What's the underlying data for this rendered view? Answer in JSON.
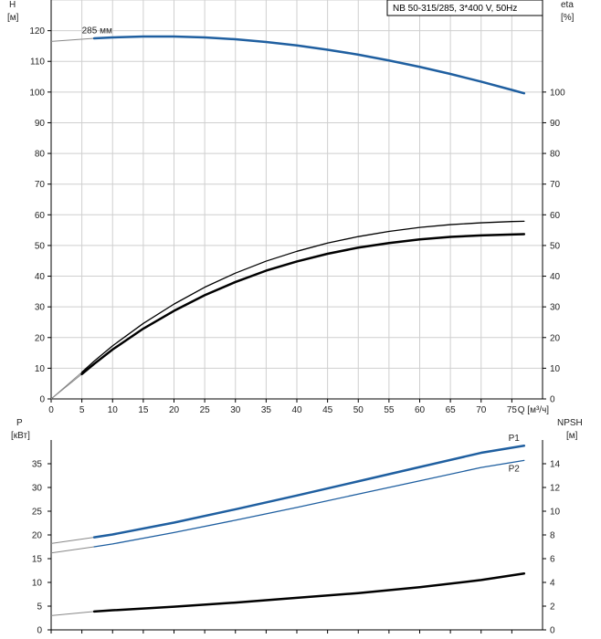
{
  "chart_data": [
    {
      "type": "line",
      "title": "NB 50-315/285, 3*400 V, 50Hz",
      "y_left_label": [
        "H",
        "[м]"
      ],
      "y_right_label": [
        "eta",
        "[%]"
      ],
      "xlabel": "Q [м³/ч]",
      "xlim": [
        0,
        80
      ],
      "ylim_left": [
        0,
        130
      ],
      "ylim_right": [
        0,
        130
      ],
      "x_ticks": [
        0,
        5,
        10,
        15,
        20,
        25,
        30,
        35,
        40,
        45,
        50,
        55,
        60,
        65,
        70,
        75
      ],
      "y_left_ticks": [
        0,
        10,
        20,
        30,
        40,
        50,
        60,
        70,
        80,
        90,
        100,
        110,
        120
      ],
      "y_right_ticks": [
        0,
        10,
        20,
        30,
        40,
        50,
        60,
        70,
        80,
        90,
        100
      ],
      "grid": true,
      "annotations": [
        {
          "text": "285 мм",
          "x": 5,
          "y": 118
        }
      ],
      "series": [
        {
          "axis": "left",
          "color": "#1f5fa0",
          "width": 2.5,
          "x": [
            0,
            7,
            10,
            15,
            20,
            25,
            30,
            35,
            40,
            45,
            50,
            55,
            60,
            65,
            70,
            75,
            77
          ],
          "y": [
            116.5,
            117.5,
            117.8,
            118.1,
            118.1,
            117.8,
            117.2,
            116.3,
            115.2,
            113.8,
            112.2,
            110.3,
            108.2,
            105.9,
            103.4,
            100.7,
            99.6
          ]
        },
        {
          "axis": "right",
          "color": "#000000",
          "width": 1.3,
          "x": [
            0,
            5,
            7,
            10,
            15,
            20,
            25,
            30,
            35,
            40,
            45,
            50,
            55,
            60,
            65,
            70,
            75,
            77
          ],
          "y": [
            0,
            8.7,
            12.3,
            17.3,
            24.6,
            30.9,
            36.4,
            41.0,
            44.9,
            48.1,
            50.8,
            52.9,
            54.6,
            55.9,
            56.8,
            57.4,
            57.8,
            57.9
          ]
        },
        {
          "axis": "right",
          "color": "#000000",
          "width": 2.5,
          "x": [
            0,
            5,
            7,
            10,
            15,
            20,
            25,
            30,
            35,
            40,
            45,
            50,
            55,
            60,
            65,
            70,
            75,
            77
          ],
          "y": [
            0,
            8.1,
            11.4,
            16.1,
            22.9,
            28.7,
            33.8,
            38.1,
            41.8,
            44.8,
            47.3,
            49.3,
            50.8,
            52.0,
            52.8,
            53.3,
            53.6,
            53.7
          ]
        }
      ]
    },
    {
      "type": "line",
      "y_left_label": [
        "P",
        "[кВт]"
      ],
      "y_right_label": [
        "NPSH",
        "[м]"
      ],
      "xlim": [
        0,
        80
      ],
      "ylim_left": [
        0,
        40
      ],
      "ylim_right": [
        0,
        16
      ],
      "y_left_ticks": [
        0,
        5,
        10,
        15,
        20,
        25,
        30,
        35
      ],
      "y_right_ticks": [
        0,
        2,
        4,
        6,
        8,
        10,
        12,
        14
      ],
      "grid": false,
      "series": [
        {
          "name": "P1",
          "axis": "left",
          "color": "#1f5fa0",
          "width": 2.5,
          "x": [
            0,
            7,
            10,
            20,
            30,
            40,
            50,
            60,
            70,
            77
          ],
          "y": [
            18.2,
            19.5,
            20.1,
            22.6,
            25.4,
            28.3,
            31.3,
            34.3,
            37.3,
            38.8
          ]
        },
        {
          "name": "P2",
          "axis": "left",
          "color": "#1f5fa0",
          "width": 1.3,
          "x": [
            0,
            7,
            10,
            20,
            30,
            40,
            50,
            60,
            70,
            77
          ],
          "y": [
            16.2,
            17.5,
            18.1,
            20.5,
            23.1,
            25.8,
            28.6,
            31.4,
            34.2,
            35.7
          ]
        },
        {
          "axis": "right",
          "color": "#000000",
          "width": 2.5,
          "x": [
            0,
            7,
            10,
            20,
            30,
            40,
            50,
            60,
            70,
            77
          ],
          "y": [
            1.2,
            1.55,
            1.65,
            1.95,
            2.3,
            2.7,
            3.1,
            3.6,
            4.2,
            4.75
          ]
        }
      ]
    }
  ]
}
